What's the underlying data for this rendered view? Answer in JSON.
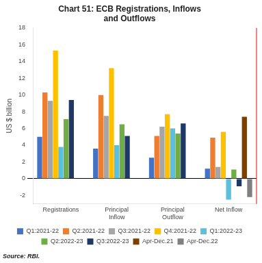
{
  "chart_data": {
    "type": "bar",
    "title": "Chart 51: ECB Registrations, Inflows\nand Outflows",
    "y_label": "US $ billion",
    "categories": [
      "Registrations",
      "Principal\nInflow",
      "Principal\nOutflow",
      "Net Inflow"
    ],
    "series": [
      {
        "name": "Q1:2021-22",
        "color": "#4472c4",
        "values": [
          5.0,
          3.6,
          2.5,
          1.2
        ]
      },
      {
        "name": "Q2:2021-22",
        "color": "#ed7d31",
        "values": [
          10.3,
          10.0,
          5.1,
          4.9
        ]
      },
      {
        "name": "Q3:2021-22",
        "color": "#a5a5a5",
        "values": [
          9.3,
          7.5,
          6.2,
          1.4
        ]
      },
      {
        "name": "Q4:2021-22",
        "color": "#ffc000",
        "values": [
          15.3,
          13.2,
          7.7,
          5.6
        ]
      },
      {
        "name": "Q1:2022-23",
        "color": "#5bc0de",
        "values": [
          3.8,
          4.0,
          6.0,
          -2.5
        ]
      },
      {
        "name": "Q2:2022-23",
        "color": "#70ad47",
        "values": [
          7.1,
          6.5,
          5.4,
          1.1
        ]
      },
      {
        "name": "Q3:2022-23",
        "color": "#203864",
        "values": [
          9.4,
          5.1,
          6.6,
          -0.9
        ]
      },
      {
        "name": "Apr-Dec.21",
        "color": "#7b3f00",
        "values": [
          null,
          null,
          null,
          7.4
        ]
      },
      {
        "name": "Apr-Dec.22",
        "color": "#808080",
        "values": [
          null,
          null,
          null,
          -2.2
        ]
      }
    ],
    "ylim": [
      -3,
      18
    ],
    "yticks": [
      -2,
      0,
      2,
      4,
      6,
      8,
      10,
      12,
      14,
      16,
      18
    ],
    "grid": false,
    "legend": "bottom",
    "annotations": [
      "Source: RBI."
    ]
  }
}
